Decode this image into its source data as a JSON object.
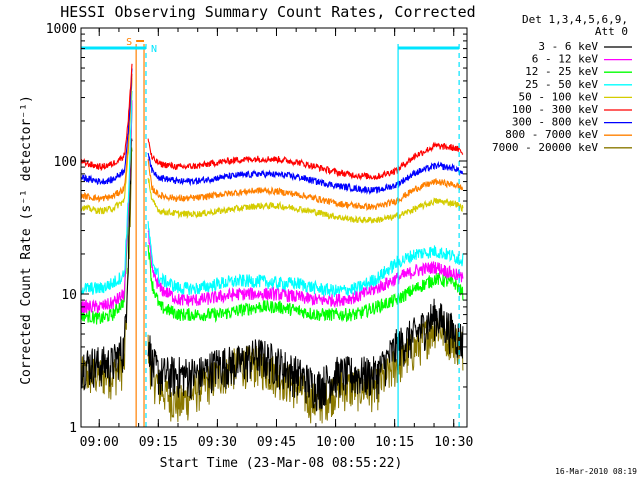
{
  "chart_data": {
    "type": "line",
    "title": "HESSI Observing Summary Count Rates, Corrected",
    "xlabel": "Start Time (23-Mar-08 08:55:22)",
    "ylabel": "Corrected Count Rate (s⁻¹ detector⁻¹)",
    "ylim": [
      1,
      1000
    ],
    "yscale": "log",
    "xlim_minutes": [
      0,
      98
    ],
    "x_ticks": [
      "09:00",
      "09:15",
      "09:30",
      "09:45",
      "10:00",
      "10:15",
      "10:30"
    ],
    "x_tick_minutes": [
      4.63,
      19.63,
      34.63,
      49.63,
      64.63,
      79.63,
      94.63
    ],
    "y_ticks": [
      "1",
      "10",
      "100",
      "1000"
    ],
    "y_tick_values": [
      1,
      10,
      100,
      1000
    ],
    "legend_title": [
      "Det 1,3,4,5,6,9,",
      "Att 0"
    ],
    "legend_position": "right",
    "markers": {
      "S_label": "S",
      "N_label": "N",
      "saa_minutes": [
        14.0,
        16.0
      ],
      "night_start_minutes": [
        16.5,
        96.0
      ],
      "day_start_minutes": [
        80.5
      ],
      "top_bars_minutes": [
        [
          0,
          16.5
        ],
        [
          80.5,
          96.0
        ]
      ],
      "s_bar_minutes": [
        14.0,
        16.0
      ]
    },
    "x": [
      0,
      5,
      8,
      11,
      12,
      13,
      14,
      16,
      17,
      18,
      20,
      25,
      30,
      35,
      40,
      45,
      50,
      55,
      60,
      65,
      70,
      75,
      80,
      85,
      90,
      95,
      97
    ],
    "series": [
      {
        "name": "3 - 6 keV",
        "color": "#000000",
        "values": [
          3,
          3,
          3,
          4,
          20,
          200,
          null,
          null,
          5,
          3,
          2.5,
          2.5,
          2.5,
          3,
          3,
          3.5,
          3,
          2.5,
          2,
          2.5,
          2.5,
          2.5,
          4,
          5,
          7,
          5,
          4.5
        ]
      },
      {
        "name": "6 - 12 keV",
        "color": "#ff00ff",
        "values": [
          8,
          8,
          8.5,
          10,
          40,
          300,
          null,
          null,
          30,
          15,
          11,
          9,
          9,
          9.5,
          10,
          10,
          10,
          9.5,
          9,
          9,
          9.5,
          11,
          13,
          15,
          16,
          14,
          13
        ]
      },
      {
        "name": "12 - 25 keV",
        "color": "#00ff00",
        "values": [
          7,
          6.5,
          7,
          9,
          35,
          280,
          null,
          null,
          25,
          12,
          8,
          7,
          7,
          7,
          7.5,
          8,
          8,
          7.5,
          7,
          7,
          7,
          8,
          9,
          11,
          13,
          12,
          10
        ]
      },
      {
        "name": "25 - 50 keV",
        "color": "#00ffff",
        "values": [
          11,
          11,
          12,
          14,
          50,
          350,
          null,
          null,
          35,
          18,
          13,
          11,
          11,
          12,
          12.5,
          12.5,
          12,
          12,
          11,
          10.5,
          11,
          13,
          17,
          20,
          21,
          19,
          18
        ]
      },
      {
        "name": "50 - 100 keV",
        "color": "#d4cc00",
        "values": [
          45,
          42,
          44,
          50,
          120,
          420,
          null,
          null,
          80,
          50,
          42,
          40,
          40,
          42,
          44,
          46,
          46,
          44,
          41,
          38,
          36,
          36,
          38,
          44,
          50,
          48,
          44
        ]
      },
      {
        "name": "100 - 300 keV",
        "color": "#ff0000",
        "values": [
          98,
          90,
          95,
          110,
          200,
          560,
          null,
          null,
          150,
          105,
          95,
          90,
          92,
          98,
          102,
          104,
          103,
          98,
          90,
          82,
          78,
          76,
          85,
          110,
          130,
          125,
          115
        ]
      },
      {
        "name": "300 - 800 keV",
        "color": "#0000ff",
        "values": [
          75,
          70,
          72,
          85,
          160,
          520,
          null,
          null,
          120,
          85,
          75,
          70,
          71,
          75,
          78,
          80,
          79,
          76,
          70,
          65,
          62,
          60,
          66,
          82,
          92,
          88,
          80
        ]
      },
      {
        "name": "800 - 7000 keV",
        "color": "#ff8000",
        "values": [
          55,
          52,
          54,
          62,
          130,
          480,
          null,
          null,
          100,
          62,
          55,
          52,
          53,
          56,
          58,
          60,
          59,
          56,
          52,
          48,
          46,
          45,
          50,
          62,
          70,
          66,
          62
        ]
      },
      {
        "name": "7000 - 20000 keV",
        "color": "#8a7800",
        "values": [
          2.5,
          2.5,
          2.5,
          3,
          15,
          150,
          null,
          null,
          4,
          2.5,
          2,
          1.5,
          2,
          2.5,
          3,
          3,
          2.5,
          2,
          1.5,
          2,
          2,
          2,
          3,
          4,
          6,
          4.5,
          4
        ]
      }
    ]
  },
  "timestamp": "16-Mar-2010 08:19"
}
